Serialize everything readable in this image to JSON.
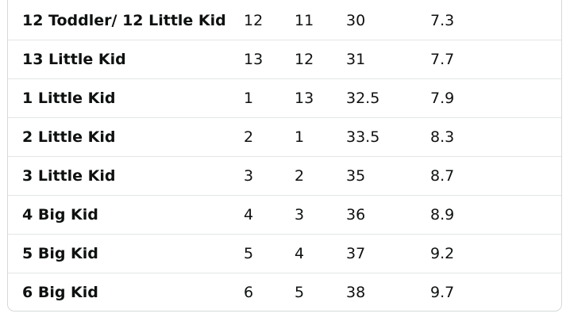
{
  "table": {
    "rows": [
      [
        "12 Toddler/ 12 Little Kid",
        "12",
        "11",
        "30",
        "7.3"
      ],
      [
        "13 Little Kid",
        "13",
        "12",
        "31",
        "7.7"
      ],
      [
        "1 Little Kid",
        "1",
        "13",
        "32.5",
        "7.9"
      ],
      [
        "2 Little Kid",
        "2",
        "1",
        "33.5",
        "8.3"
      ],
      [
        "3 Little Kid",
        "3",
        "2",
        "35",
        "8.7"
      ],
      [
        "4 Big Kid",
        "4",
        "3",
        "36",
        "8.9"
      ],
      [
        "5 Big Kid",
        "5",
        "4",
        "37",
        "9.2"
      ],
      [
        "6 Big Kid",
        "6",
        "5",
        "38",
        "9.7"
      ]
    ]
  }
}
